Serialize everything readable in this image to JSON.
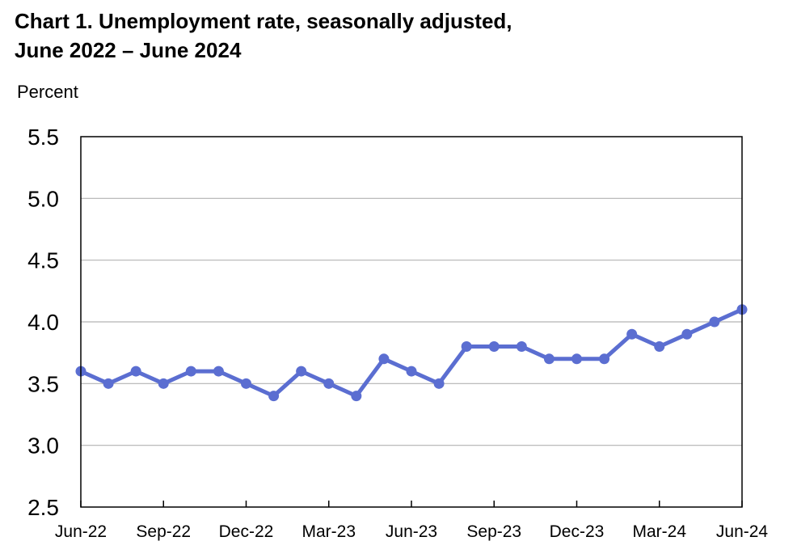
{
  "chart_data": {
    "type": "line",
    "title": "Chart 1. Unemployment rate, seasonally adjusted,",
    "subtitle": "June 2022 – June 2024",
    "ylabel": "Percent",
    "xlabel": "",
    "ylim": [
      2.5,
      5.5
    ],
    "yticks": [
      "5.5",
      "5.0",
      "4.5",
      "4.0",
      "3.5",
      "3.0",
      "2.5"
    ],
    "ytick_values": [
      5.5,
      5.0,
      4.5,
      4.0,
      3.5,
      3.0,
      2.5
    ],
    "xtick_labels": [
      "Jun-22",
      "Sep-22",
      "Dec-22",
      "Mar-23",
      "Jun-23",
      "Sep-23",
      "Dec-23",
      "Mar-24",
      "Jun-24"
    ],
    "xtick_indices": [
      0,
      3,
      6,
      9,
      12,
      15,
      18,
      21,
      24
    ],
    "grid": true,
    "color": "#5b6ed1",
    "x": [
      "Jun-22",
      "Jul-22",
      "Aug-22",
      "Sep-22",
      "Oct-22",
      "Nov-22",
      "Dec-22",
      "Jan-23",
      "Feb-23",
      "Mar-23",
      "Apr-23",
      "May-23",
      "Jun-23",
      "Jul-23",
      "Aug-23",
      "Sep-23",
      "Oct-23",
      "Nov-23",
      "Dec-23",
      "Jan-24",
      "Feb-24",
      "Mar-24",
      "Apr-24",
      "May-24",
      "Jun-24"
    ],
    "values": [
      3.6,
      3.5,
      3.6,
      3.5,
      3.6,
      3.6,
      3.5,
      3.4,
      3.6,
      3.5,
      3.4,
      3.7,
      3.6,
      3.5,
      3.8,
      3.8,
      3.8,
      3.7,
      3.7,
      3.7,
      3.9,
      3.8,
      3.9,
      4.0,
      4.1
    ]
  }
}
